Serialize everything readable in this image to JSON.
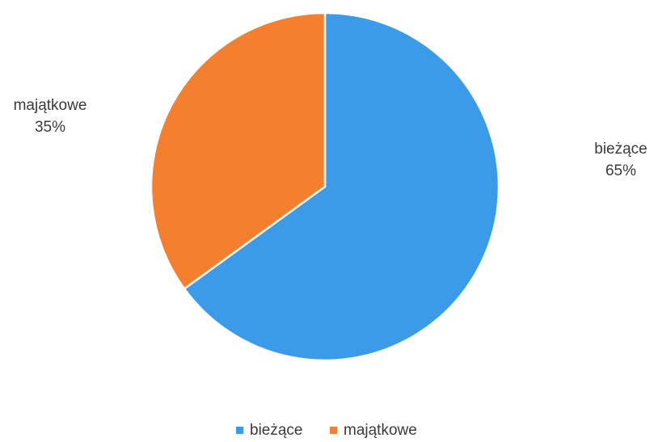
{
  "chart_data": {
    "type": "pie",
    "categories": [
      "bieżące",
      "majątkowe"
    ],
    "values": [
      65,
      35
    ],
    "colors": [
      "#3B9BE8",
      "#F47F2F"
    ],
    "data_labels": [
      {
        "name": "bieżące",
        "percent": "65%"
      },
      {
        "name": "majątkowe",
        "percent": "35%"
      }
    ],
    "legend": {
      "placement": "bottom",
      "items": [
        "bieżące",
        "majątkowe"
      ]
    }
  }
}
